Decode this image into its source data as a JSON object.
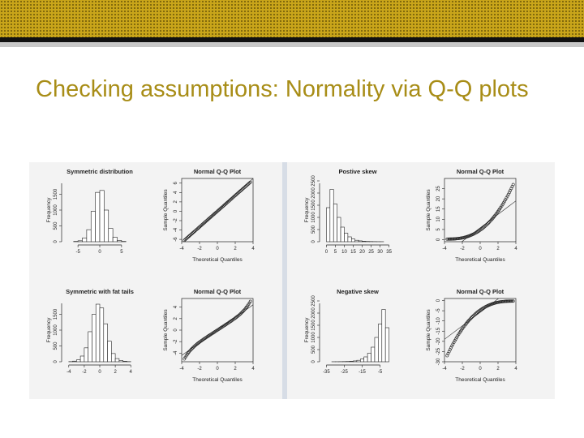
{
  "slide": {
    "title": "Checking assumptions: Normality via Q-Q plots"
  },
  "colors": {
    "header_band": "#c9a51a",
    "header_dots": "#6f5a08",
    "title_text": "#a88d17",
    "divider_dark": "#111111",
    "divider_grey": "#c8c8c8",
    "figure_background": "#f3f3f3"
  },
  "chart_data": [
    {
      "type": "bar",
      "title": "Symmetric distribution",
      "xlabel": "",
      "ylabel": "Frequency",
      "xlim": [
        -8,
        8
      ],
      "ylim": [
        0,
        2000
      ],
      "xticks": [
        "-5",
        "0",
        "5"
      ],
      "yticks": [
        "0",
        "500",
        "1000",
        "1500"
      ],
      "bins": [
        [
          -6,
          -5
        ],
        [
          -5,
          -4
        ],
        [
          -4,
          -3
        ],
        [
          -3,
          -2
        ],
        [
          -2,
          -1
        ],
        [
          -1,
          0
        ],
        [
          0,
          1
        ],
        [
          1,
          2
        ],
        [
          2,
          3
        ],
        [
          3,
          4
        ],
        [
          4,
          5
        ],
        [
          5,
          6
        ]
      ],
      "values": [
        10,
        30,
        120,
        380,
        960,
        1560,
        1620,
        1000,
        420,
        140,
        40,
        10
      ]
    },
    {
      "type": "scatter",
      "title": "Normal Q-Q Plot",
      "xlabel": "Theoretical Quantiles",
      "ylabel": "Sample Quantiles",
      "xlim": [
        -4,
        4
      ],
      "ylim": [
        -6.5,
        7
      ],
      "xticks": [
        "-4",
        "-2",
        "0",
        "2",
        "4"
      ],
      "yticks": [
        "-6",
        "-4",
        "-2",
        "0",
        "2",
        "4",
        "6"
      ],
      "pattern": "straight line",
      "reference_line": {
        "intercept": 0,
        "slope": 1.75
      },
      "points_x": [
        -3.7,
        3.7
      ],
      "points_y": [
        -6.2,
        6.2
      ]
    },
    {
      "type": "bar",
      "title": "Postive skew",
      "xlabel": "",
      "ylabel": "Frequency",
      "xlim": [
        -2,
        37
      ],
      "ylim": [
        0,
        2600
      ],
      "xticks": [
        "0",
        "5",
        "10",
        "15",
        "20",
        "25",
        "30",
        "35"
      ],
      "yticks": [
        "0",
        "500",
        "1000",
        "1500",
        "2000",
        "2500"
      ],
      "bins": [
        [
          0,
          2
        ],
        [
          2,
          4
        ],
        [
          4,
          6
        ],
        [
          6,
          8
        ],
        [
          8,
          10
        ],
        [
          10,
          12
        ],
        [
          12,
          14
        ],
        [
          14,
          16
        ],
        [
          16,
          18
        ],
        [
          18,
          20
        ],
        [
          20,
          22
        ],
        [
          22,
          24
        ],
        [
          24,
          26
        ],
        [
          26,
          28
        ],
        [
          28,
          30
        ],
        [
          30,
          32
        ]
      ],
      "values": [
        1400,
        2150,
        1550,
        1000,
        600,
        350,
        200,
        110,
        60,
        35,
        20,
        12,
        8,
        5,
        3,
        2
      ]
    },
    {
      "type": "scatter",
      "title": "Normal Q-Q Plot",
      "xlabel": "Theoretical Quantiles",
      "ylabel": "Sample Quantiles",
      "xlim": [
        -4,
        4
      ],
      "ylim": [
        -1,
        30
      ],
      "xticks": [
        "-4",
        "-2",
        "0",
        "2",
        "4"
      ],
      "yticks": [
        "0",
        "5",
        "10",
        "15",
        "20",
        "25"
      ],
      "pattern": "convex curve",
      "reference_line": {
        "intercept": 5.8,
        "slope": 3.3
      },
      "points_x": [
        -3.7,
        3.7
      ],
      "points_y": [
        0.3,
        27
      ]
    },
    {
      "type": "bar",
      "title": "Symmetric with fat tails",
      "xlabel": "",
      "ylabel": "Frequency",
      "xlim": [
        -4.5,
        4.5
      ],
      "ylim": [
        0,
        2000
      ],
      "xticks": [
        "-4",
        "-2",
        "0",
        "2",
        "4"
      ],
      "yticks": [
        "0",
        "500",
        "1000",
        "1500"
      ],
      "bins": [
        [
          -4,
          -3.5
        ],
        [
          -3.5,
          -3
        ],
        [
          -3,
          -2.5
        ],
        [
          -2.5,
          -2
        ],
        [
          -2,
          -1.5
        ],
        [
          -1.5,
          -1
        ],
        [
          -1,
          -0.5
        ],
        [
          -0.5,
          0
        ],
        [
          0,
          0.5
        ],
        [
          0.5,
          1
        ],
        [
          1,
          1.5
        ],
        [
          1.5,
          2
        ],
        [
          2,
          2.5
        ],
        [
          2.5,
          3
        ],
        [
          3,
          3.5
        ],
        [
          3.5,
          4
        ]
      ],
      "values": [
        5,
        20,
        60,
        180,
        440,
        950,
        1500,
        1820,
        1700,
        1200,
        650,
        260,
        100,
        40,
        15,
        5
      ]
    },
    {
      "type": "scatter",
      "title": "Normal Q-Q Plot",
      "xlabel": "Theoretical Quantiles",
      "ylabel": "Sample Quantiles",
      "xlim": [
        -4,
        4
      ],
      "ylim": [
        -5.5,
        5.5
      ],
      "xticks": [
        "-4",
        "-2",
        "0",
        "2",
        "4"
      ],
      "yticks": [
        "-4",
        "-2",
        "0",
        "2",
        "4"
      ],
      "pattern": "s-shaped, fat tails",
      "reference_line": {
        "intercept": 0,
        "slope": 1.1
      },
      "points_x": [
        -3.7,
        3.7
      ],
      "points_y": [
        -5,
        5
      ]
    },
    {
      "type": "bar",
      "title": "Negative skew",
      "xlabel": "",
      "ylabel": "Frequency",
      "xlim": [
        -37,
        2
      ],
      "ylim": [
        0,
        2600
      ],
      "xticks": [
        "-35",
        "-25",
        "-15",
        "-5"
      ],
      "yticks": [
        "0",
        "500",
        "1000",
        "1500",
        "2000",
        "2500"
      ],
      "bins": [
        [
          -32,
          -30
        ],
        [
          -30,
          -28
        ],
        [
          -28,
          -26
        ],
        [
          -26,
          -24
        ],
        [
          -24,
          -22
        ],
        [
          -22,
          -20
        ],
        [
          -20,
          -18
        ],
        [
          -18,
          -16
        ],
        [
          -16,
          -14
        ],
        [
          -14,
          -12
        ],
        [
          -12,
          -10
        ],
        [
          -10,
          -8
        ],
        [
          -8,
          -6
        ],
        [
          -6,
          -4
        ],
        [
          -4,
          -2
        ],
        [
          -2,
          0
        ]
      ],
      "values": [
        2,
        3,
        5,
        8,
        12,
        20,
        35,
        60,
        110,
        200,
        350,
        600,
        1000,
        1550,
        2150,
        1400
      ]
    },
    {
      "type": "scatter",
      "title": "Normal Q-Q Plot",
      "xlabel": "Theoretical Quantiles",
      "ylabel": "Sample Quantiles",
      "xlim": [
        -4,
        4
      ],
      "ylim": [
        -30,
        1
      ],
      "xticks": [
        "-4",
        "-2",
        "0",
        "2",
        "4"
      ],
      "yticks": [
        "-30",
        "-25",
        "-20",
        "-15",
        "-10",
        "-5",
        "0"
      ],
      "pattern": "concave curve",
      "reference_line": {
        "intercept": -5.8,
        "slope": 3.3
      },
      "points_x": [
        -3.7,
        3.7
      ],
      "points_y": [
        -27,
        -0.3
      ]
    }
  ]
}
